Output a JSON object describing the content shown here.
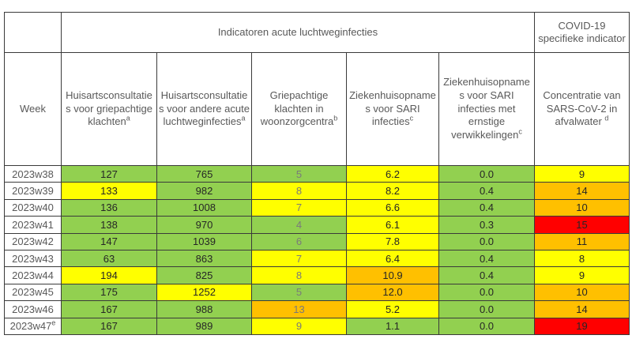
{
  "header": {
    "group_label": "Indicatoren acute luchtweginfecties",
    "covid_label": "COVID-19 specifieke indicator"
  },
  "chart_data": {
    "type": "table",
    "title": "Indicatoren acute luchtweginfecties",
    "group_headers": [
      {
        "label": "Indicatoren acute luchtweginfecties",
        "span": 5
      },
      {
        "label": "COVID-19 specifieke indicator",
        "span": 1
      }
    ],
    "column_headers": [
      {
        "label": "Week",
        "sup": ""
      },
      {
        "label": "Huisartsconsultaties voor griepachtige klachten",
        "sup": "a"
      },
      {
        "label": "Huisartsconsultaties voor andere acute luchtweginfecties",
        "sup": "a"
      },
      {
        "label": "Griepachtige klachten in woonzorgcentra",
        "sup": "b"
      },
      {
        "label": "Ziekenhuisopnames voor SARI infecties",
        "sup": "c"
      },
      {
        "label": "Ziekenhuisopnames voor SARI infecties met ernstige verwikkelingen",
        "sup": "c"
      },
      {
        "label": "Concentratie van SARS-CoV-2 in afvalwater ",
        "sup": "d"
      }
    ],
    "color_legend": {
      "green": "#92D050",
      "yellow": "#FFFF00",
      "orange": "#FFC000",
      "red": "#FF0000"
    },
    "rows": [
      {
        "week": "2023w38",
        "week_sup": "",
        "values": [
          "127",
          "765",
          "5",
          "6.2",
          "0.0",
          "9"
        ],
        "colors": [
          "green",
          "green",
          "green",
          "yellow",
          "green",
          "yellow"
        ]
      },
      {
        "week": "2023w39",
        "week_sup": "",
        "values": [
          "133",
          "982",
          "8",
          "8.2",
          "0.4",
          "14"
        ],
        "colors": [
          "yellow",
          "green",
          "yellow",
          "yellow",
          "green",
          "orange"
        ]
      },
      {
        "week": "2023w40",
        "week_sup": "",
        "values": [
          "136",
          "1008",
          "7",
          "6.6",
          "0.4",
          "10"
        ],
        "colors": [
          "green",
          "green",
          "yellow",
          "yellow",
          "green",
          "orange"
        ]
      },
      {
        "week": "2023w41",
        "week_sup": "",
        "values": [
          "138",
          "970",
          "4",
          "6.1",
          "0.3",
          "15"
        ],
        "colors": [
          "green",
          "green",
          "green",
          "yellow",
          "green",
          "red"
        ]
      },
      {
        "week": "2023w42",
        "week_sup": "",
        "values": [
          "147",
          "1039",
          "6",
          "7.8",
          "0.0",
          "11"
        ],
        "colors": [
          "green",
          "green",
          "green",
          "yellow",
          "green",
          "orange"
        ]
      },
      {
        "week": "2023w43",
        "week_sup": "",
        "values": [
          "63",
          "863",
          "7",
          "6.4",
          "0.4",
          "8"
        ],
        "colors": [
          "green",
          "green",
          "yellow",
          "yellow",
          "green",
          "yellow"
        ]
      },
      {
        "week": "2023w44",
        "week_sup": "",
        "values": [
          "194",
          "825",
          "8",
          "10.9",
          "0.4",
          "9"
        ],
        "colors": [
          "yellow",
          "green",
          "yellow",
          "orange",
          "green",
          "yellow"
        ]
      },
      {
        "week": "2023w45",
        "week_sup": "",
        "values": [
          "175",
          "1252",
          "5",
          "12.0",
          "0.0",
          "10"
        ],
        "colors": [
          "green",
          "yellow",
          "green",
          "orange",
          "green",
          "orange"
        ]
      },
      {
        "week": "2023w46",
        "week_sup": "",
        "values": [
          "167",
          "988",
          "13",
          "5.2",
          "0.0",
          "14"
        ],
        "colors": [
          "green",
          "green",
          "orange",
          "yellow",
          "green",
          "orange"
        ]
      },
      {
        "week": "2023w47",
        "week_sup": "e",
        "values": [
          "167",
          "989",
          "9",
          "1.1",
          "0.0",
          "19"
        ],
        "colors": [
          "green",
          "green",
          "yellow",
          "green",
          "green",
          "red"
        ]
      }
    ],
    "muted_value_column_index": 2
  }
}
